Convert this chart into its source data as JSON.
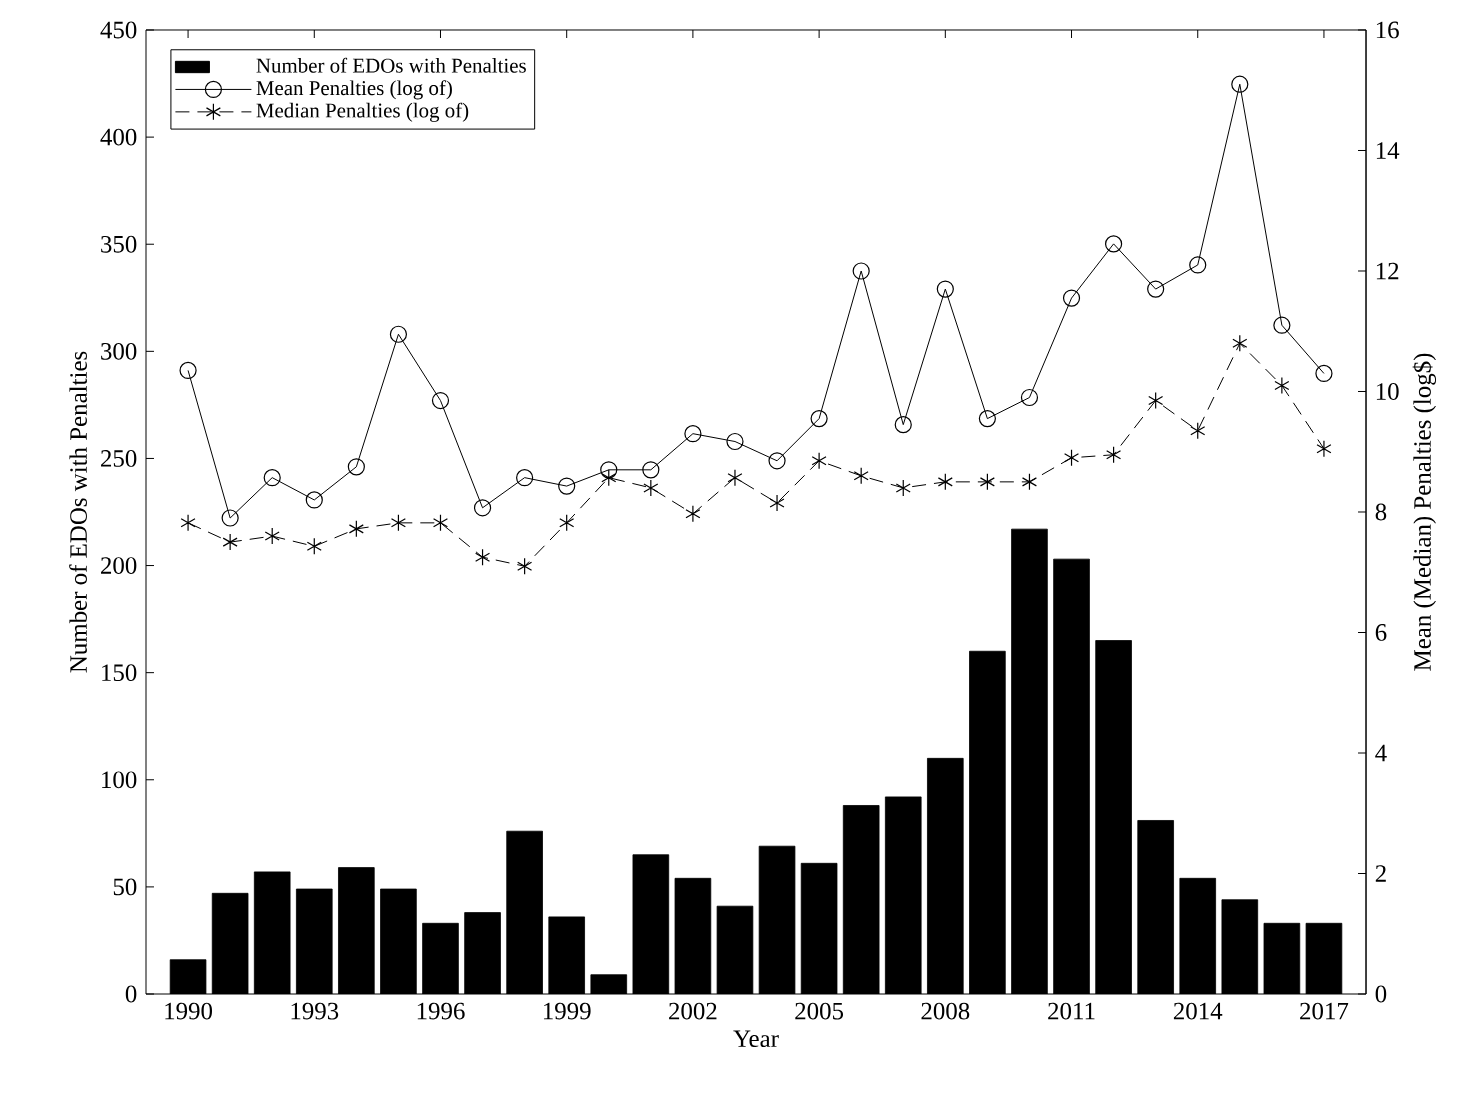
{
  "chart_data": {
    "type": "bar",
    "xlabel": "Year",
    "ylabel": "Number of EDOs with Penalties",
    "y2label": "Mean (Median) Penalties (log$)",
    "x": [
      1990,
      1991,
      1992,
      1993,
      1994,
      1995,
      1996,
      1997,
      1998,
      1999,
      2000,
      2001,
      2002,
      2003,
      2004,
      2005,
      2006,
      2007,
      2008,
      2009,
      2010,
      2011,
      2012,
      2013,
      2014,
      2015,
      2016,
      2017
    ],
    "xlim": [
      1989,
      2018
    ],
    "xticks": [
      1990,
      1993,
      1996,
      1999,
      2002,
      2005,
      2008,
      2011,
      2014,
      2017
    ],
    "ylim": [
      0,
      450
    ],
    "yticks": [
      0,
      50,
      100,
      150,
      200,
      250,
      300,
      350,
      400,
      450
    ],
    "y2lim": [
      0,
      16
    ],
    "y2ticks": [
      0,
      2,
      4,
      6,
      8,
      10,
      12,
      14,
      16
    ],
    "legend": "top left",
    "grid": false,
    "series": [
      {
        "name": "Number of EDOs with Penalties",
        "color": "#000000",
        "values": [
          16,
          47,
          57,
          49,
          59,
          49,
          33,
          38,
          76,
          36,
          9,
          65,
          54,
          41,
          69,
          61,
          88,
          92,
          110,
          160,
          217,
          203,
          165,
          81,
          54,
          44,
          33,
          33
        ]
      },
      {
        "name": "Mean Penalties (log of)",
        "type": "line",
        "axis": "y2",
        "color": "#000000",
        "marker": "circle",
        "line_style": "solid",
        "values": [
          10.35,
          7.9,
          8.57,
          8.2,
          8.75,
          10.95,
          9.85,
          8.07,
          8.57,
          8.43,
          8.7,
          8.7,
          9.3,
          9.17,
          8.85,
          9.55,
          12.0,
          9.45,
          11.7,
          9.55,
          9.9,
          11.55,
          12.45,
          11.7,
          12.1,
          15.1,
          11.1,
          10.3
        ]
      },
      {
        "name": "Median Penalties (log of)",
        "type": "line",
        "axis": "y2",
        "color": "#000000",
        "marker": "cross",
        "line_style": "dashed",
        "values": [
          7.82,
          7.5,
          7.6,
          7.43,
          7.72,
          7.82,
          7.82,
          7.25,
          7.1,
          7.82,
          8.57,
          8.4,
          7.97,
          8.57,
          8.15,
          8.85,
          8.6,
          8.4,
          8.5,
          8.5,
          8.5,
          8.9,
          8.95,
          9.85,
          9.35,
          10.8,
          10.1,
          9.05
        ]
      }
    ]
  }
}
